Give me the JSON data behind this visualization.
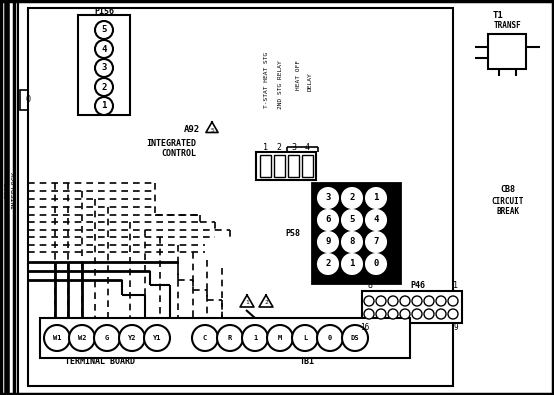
{
  "bg_color": "#ffffff",
  "figsize": [
    5.54,
    3.95
  ],
  "dpi": 100,
  "p156_labels": [
    "5",
    "4",
    "3",
    "2",
    "1"
  ],
  "p58_labels": [
    [
      "3",
      "2",
      "1"
    ],
    [
      "6",
      "5",
      "4"
    ],
    [
      "9",
      "8",
      "7"
    ],
    [
      "2",
      "1",
      "0"
    ]
  ],
  "tb_labels": [
    "W1",
    "W2",
    "G",
    "Y2",
    "Y1",
    "C",
    "R",
    "1",
    "M",
    "L",
    "0",
    "DS"
  ],
  "relay_nums": [
    "1",
    "2",
    "3",
    "4"
  ]
}
